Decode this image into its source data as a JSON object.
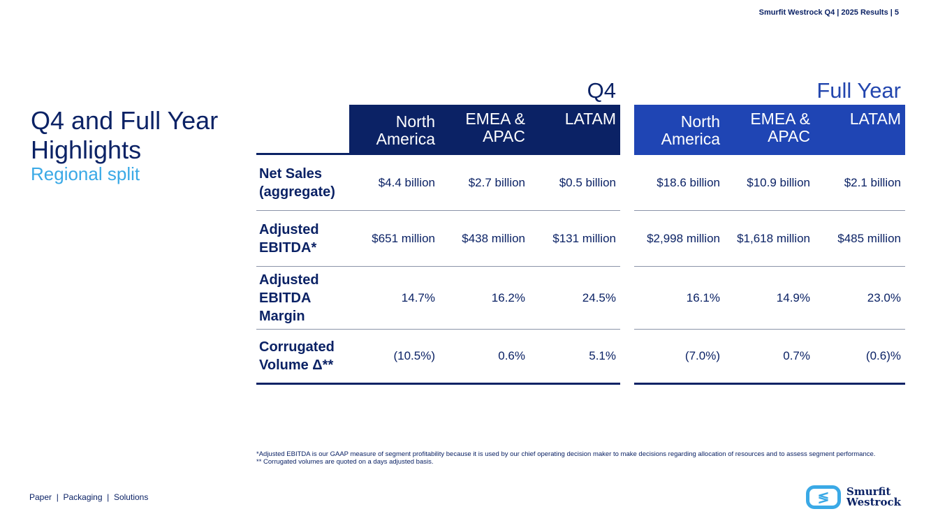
{
  "header": {
    "text": "Smurfit Westrock Q4 | 2025 Results |   5"
  },
  "title": {
    "main": "Q4 and Full Year Highlights",
    "sub": "Regional split"
  },
  "groups": {
    "q4": "Q4",
    "fy": "Full Year"
  },
  "columns": [
    "North America",
    "EMEA & APAC",
    "LATAM"
  ],
  "rows": [
    {
      "label": "Net Sales (aggregate)",
      "q4": [
        "$4.4 billion",
        "$2.7 billion",
        "$0.5 billion"
      ],
      "fy": [
        "$18.6 billion",
        "$10.9 billion",
        "$2.1 billion"
      ]
    },
    {
      "label": "Adjusted EBITDA*",
      "q4": [
        "$651 million",
        "$438 million",
        "$131 million"
      ],
      "fy": [
        "$2,998 million",
        "$1,618 million",
        "$485 million"
      ]
    },
    {
      "label": "Adjusted EBITDA Margin",
      "q4": [
        "14.7%",
        "16.2%",
        "24.5%"
      ],
      "fy": [
        "16.1%",
        "14.9%",
        "23.0%"
      ]
    },
    {
      "label": "Corrugated Volume Δ**",
      "q4": [
        "(10.5%)",
        "0.6%",
        "5.1%"
      ],
      "fy": [
        "(7.0%)",
        "0.7%",
        "(0.6)%"
      ]
    }
  ],
  "footnotes": [
    "*Adjusted EBITDA is our GAAP measure of segment profitability because it is used by our chief operating decision maker to make decisions regarding allocation of resources and to assess segment performance.",
    "** Corrugated volumes are quoted on a days adjusted basis."
  ],
  "tagline": "Paper  |  Packaging  |  Solutions",
  "logo": {
    "line1": "Smurfit",
    "line2": "Westrock"
  }
}
